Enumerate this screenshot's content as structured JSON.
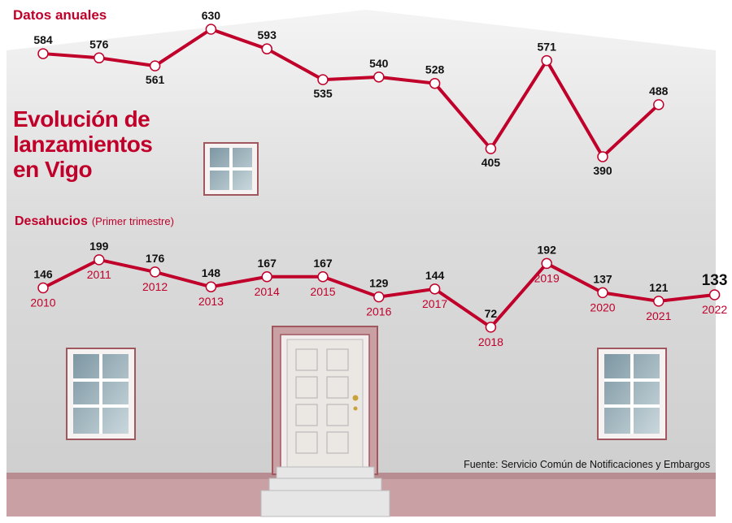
{
  "title": "Evolución de lanzamientos en Vigo",
  "source": "Fuente: Servicio Común de Notificaciones y Embargos",
  "chart_data": [
    {
      "type": "line",
      "title": "Datos anuales",
      "color": "#c0002a",
      "values": [
        584,
        576,
        561,
        630,
        593,
        535,
        540,
        528,
        405,
        571,
        390,
        488
      ]
    },
    {
      "type": "line",
      "title": "Desahucios",
      "subtitle": "(Primer trimestre)",
      "color": "#c0002a",
      "categories": [
        "2010",
        "2011",
        "2012",
        "2013",
        "2014",
        "2015",
        "2016",
        "2017",
        "2018",
        "2019",
        "2020",
        "2021",
        "2022"
      ],
      "values": [
        146,
        199,
        176,
        148,
        167,
        167,
        129,
        144,
        72,
        192,
        137,
        121,
        133
      ]
    }
  ]
}
